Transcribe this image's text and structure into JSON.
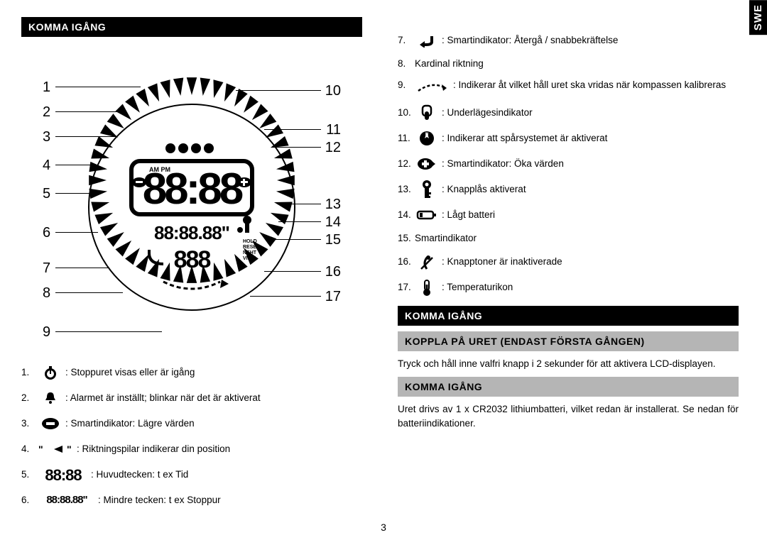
{
  "page_number": "3",
  "swe_tab": "SWE",
  "left": {
    "header1": "KOMMA IGÅNG",
    "diagram": {
      "left_numbers": [
        "1",
        "2",
        "3",
        "4",
        "5",
        "6",
        "7",
        "8",
        "9"
      ],
      "right_numbers": [
        "10",
        "11",
        "12",
        "13",
        "14",
        "15",
        "16",
        "17"
      ],
      "compass_circle": {
        "has_triangles": true,
        "has_numbered_leaders": true
      }
    },
    "legend": [
      {
        "num": "1.",
        "icon": "stopwatch",
        "text": ": Stoppuret visas eller är igång"
      },
      {
        "num": "2.",
        "icon": "bell",
        "text": ": Alarmet är inställt; blinkar när det är aktiverat"
      },
      {
        "num": "3.",
        "icon": "minus-pill",
        "text": ": Smartindikator: Lägre värden"
      },
      {
        "num": "4.",
        "icon": "arrow-left-dots",
        "text": "\"   \" : Riktningspilar indikerar din position",
        "raw": true
      },
      {
        "num": "5.",
        "icon": "lcd-big",
        "text": ": Huvudtecken: t ex Tid",
        "icon_text": "88:88"
      },
      {
        "num": "6.",
        "icon": "lcd-small",
        "text": ": Mindre tecken: t ex Stoppur",
        "icon_text": "88:88.88\""
      }
    ]
  },
  "right": {
    "items": [
      {
        "num": "7.",
        "icon": "return-arrow",
        "text": ": Smartindikator: Återgå / snabbekräftelse"
      },
      {
        "num": "8.",
        "icon": "",
        "text": "Kardinal riktning"
      },
      {
        "num": "9.",
        "icon": "dashed-arrow",
        "text": ": Indikerar åt vilket håll uret ska vridas när kompassen kalibreras"
      },
      {
        "num": "10.",
        "icon": "sublayer",
        "text": ": Underlägesindikator"
      },
      {
        "num": "11.",
        "icon": "north-compass",
        "text": ": Indikerar att spårsystemet är aktiverat"
      },
      {
        "num": "12.",
        "icon": "plus-pill",
        "text": ": Smartindikator: Öka värden"
      },
      {
        "num": "13.",
        "icon": "key",
        "text": ": Knapplås aktiverat"
      },
      {
        "num": "14.",
        "icon": "low-batt",
        "text": ": Lågt batteri"
      },
      {
        "num": "15.",
        "icon": "",
        "text": "Smartindikator"
      },
      {
        "num": "16.",
        "icon": "mute",
        "text": ": Knapptoner är inaktiverade"
      },
      {
        "num": "17.",
        "icon": "thermometer",
        "text": ": Temperaturikon"
      }
    ],
    "header2": "KOMMA IGÅNG",
    "subheader1": "KOPPLA PÅ URET (ENDAST FÖRSTA GÅNGEN)",
    "para1": "Tryck och håll inne valfri knapp i 2 sekunder för att aktivera LCD-displayen.",
    "subheader2": "KOMMA IGÅNG",
    "para2": "Uret drivs av 1 x CR2032 lithiumbatteri, vilket redan är installerat. Se nedan för batteriindikationer."
  },
  "colors": {
    "black": "#000000",
    "white": "#ffffff",
    "grey": "#b5b5b5"
  }
}
